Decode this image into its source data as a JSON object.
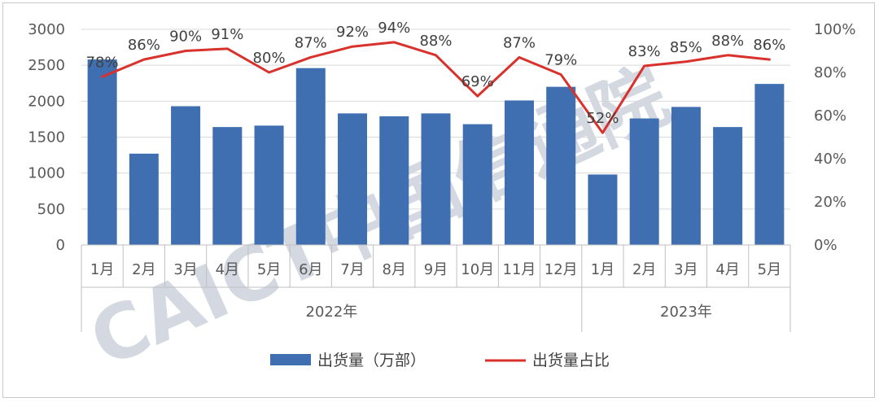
{
  "chart_data": {
    "type": "bar",
    "title": "",
    "xlabel": "",
    "ylabel": "",
    "ylim": [
      0,
      3000
    ],
    "y2lim": [
      0,
      1
    ],
    "yticks": [
      "0",
      "500",
      "1000",
      "1500",
      "2000",
      "2500",
      "3000"
    ],
    "y2ticks": [
      "0%",
      "20%",
      "40%",
      "60%",
      "80%",
      "100%"
    ],
    "grid": true,
    "legend_position": "bottom",
    "categories": [
      "1月",
      "2月",
      "3月",
      "4月",
      "5月",
      "6月",
      "7月",
      "8月",
      "9月",
      "10月",
      "11月",
      "12月",
      "1月",
      "2月",
      "3月",
      "4月",
      "5月"
    ],
    "groups": [
      {
        "label": "2022年",
        "count": 12
      },
      {
        "label": "2023年",
        "count": 5
      }
    ],
    "series": [
      {
        "name": "出货量（万部）",
        "type": "bar",
        "axis": "left",
        "color": "#3f6fb0",
        "values": [
          2580,
          1270,
          1930,
          1640,
          1660,
          2460,
          1830,
          1790,
          1830,
          1680,
          2010,
          2200,
          980,
          1760,
          1920,
          1640,
          2240
        ]
      },
      {
        "name": "出货量占比",
        "type": "line",
        "axis": "right",
        "color": "#d9312c",
        "values": [
          0.78,
          0.86,
          0.9,
          0.91,
          0.8,
          0.87,
          0.92,
          0.94,
          0.88,
          0.69,
          0.87,
          0.79,
          0.52,
          0.83,
          0.85,
          0.88,
          0.86
        ],
        "labels": [
          "78%",
          "86%",
          "90%",
          "91%",
          "80%",
          "87%",
          "92%",
          "94%",
          "88%",
          "69%",
          "87%",
          "79%",
          "52%",
          "83%",
          "85%",
          "88%",
          "86%"
        ]
      }
    ]
  },
  "watermark": {
    "text": "CAICT中国信通院"
  }
}
